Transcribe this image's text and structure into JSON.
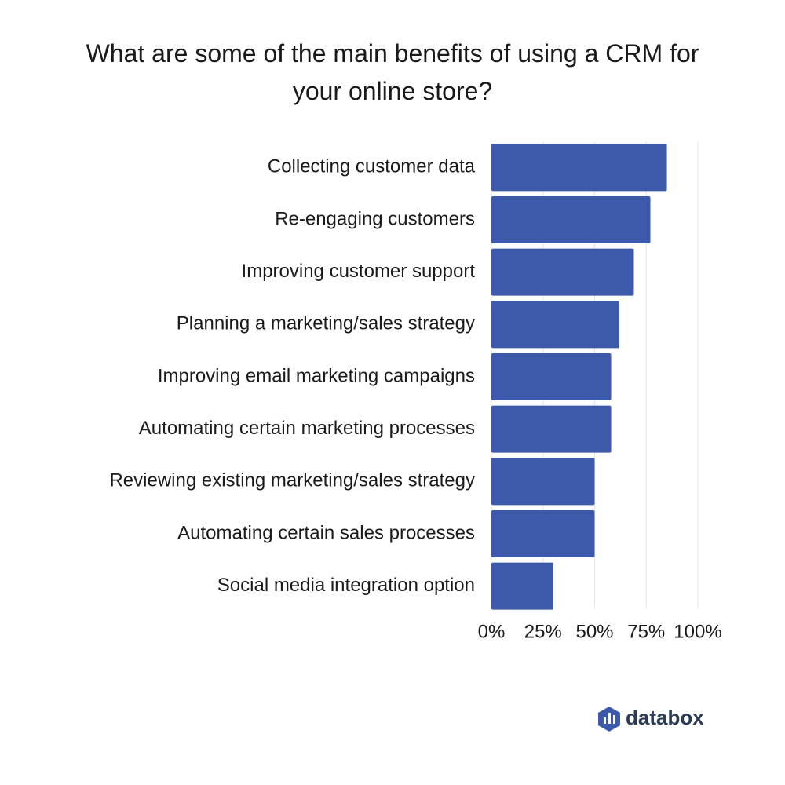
{
  "chart_data": {
    "type": "bar",
    "orientation": "horizontal",
    "title": "What are some of the main benefits of using a CRM for your online store?",
    "categories": [
      "Collecting customer data",
      "Re-engaging customers",
      "Improving customer support",
      "Planning a marketing/sales strategy",
      "Improving email marketing campaigns",
      "Automating certain marketing processes",
      "Reviewing existing marketing/sales strategy",
      "Automating certain sales processes",
      "Social media integration option"
    ],
    "values": [
      85,
      77,
      69,
      62,
      58,
      58,
      50,
      50,
      30
    ],
    "color": "#3d59ab",
    "xlim": [
      0,
      100
    ],
    "xticks": [
      {
        "value": 0,
        "label": "0%"
      },
      {
        "value": 25,
        "label": "25%"
      },
      {
        "value": 50,
        "label": "50%"
      },
      {
        "value": 75,
        "label": "75%"
      },
      {
        "value": 100,
        "label": "100%"
      }
    ],
    "grid": true
  },
  "logo": "databox"
}
